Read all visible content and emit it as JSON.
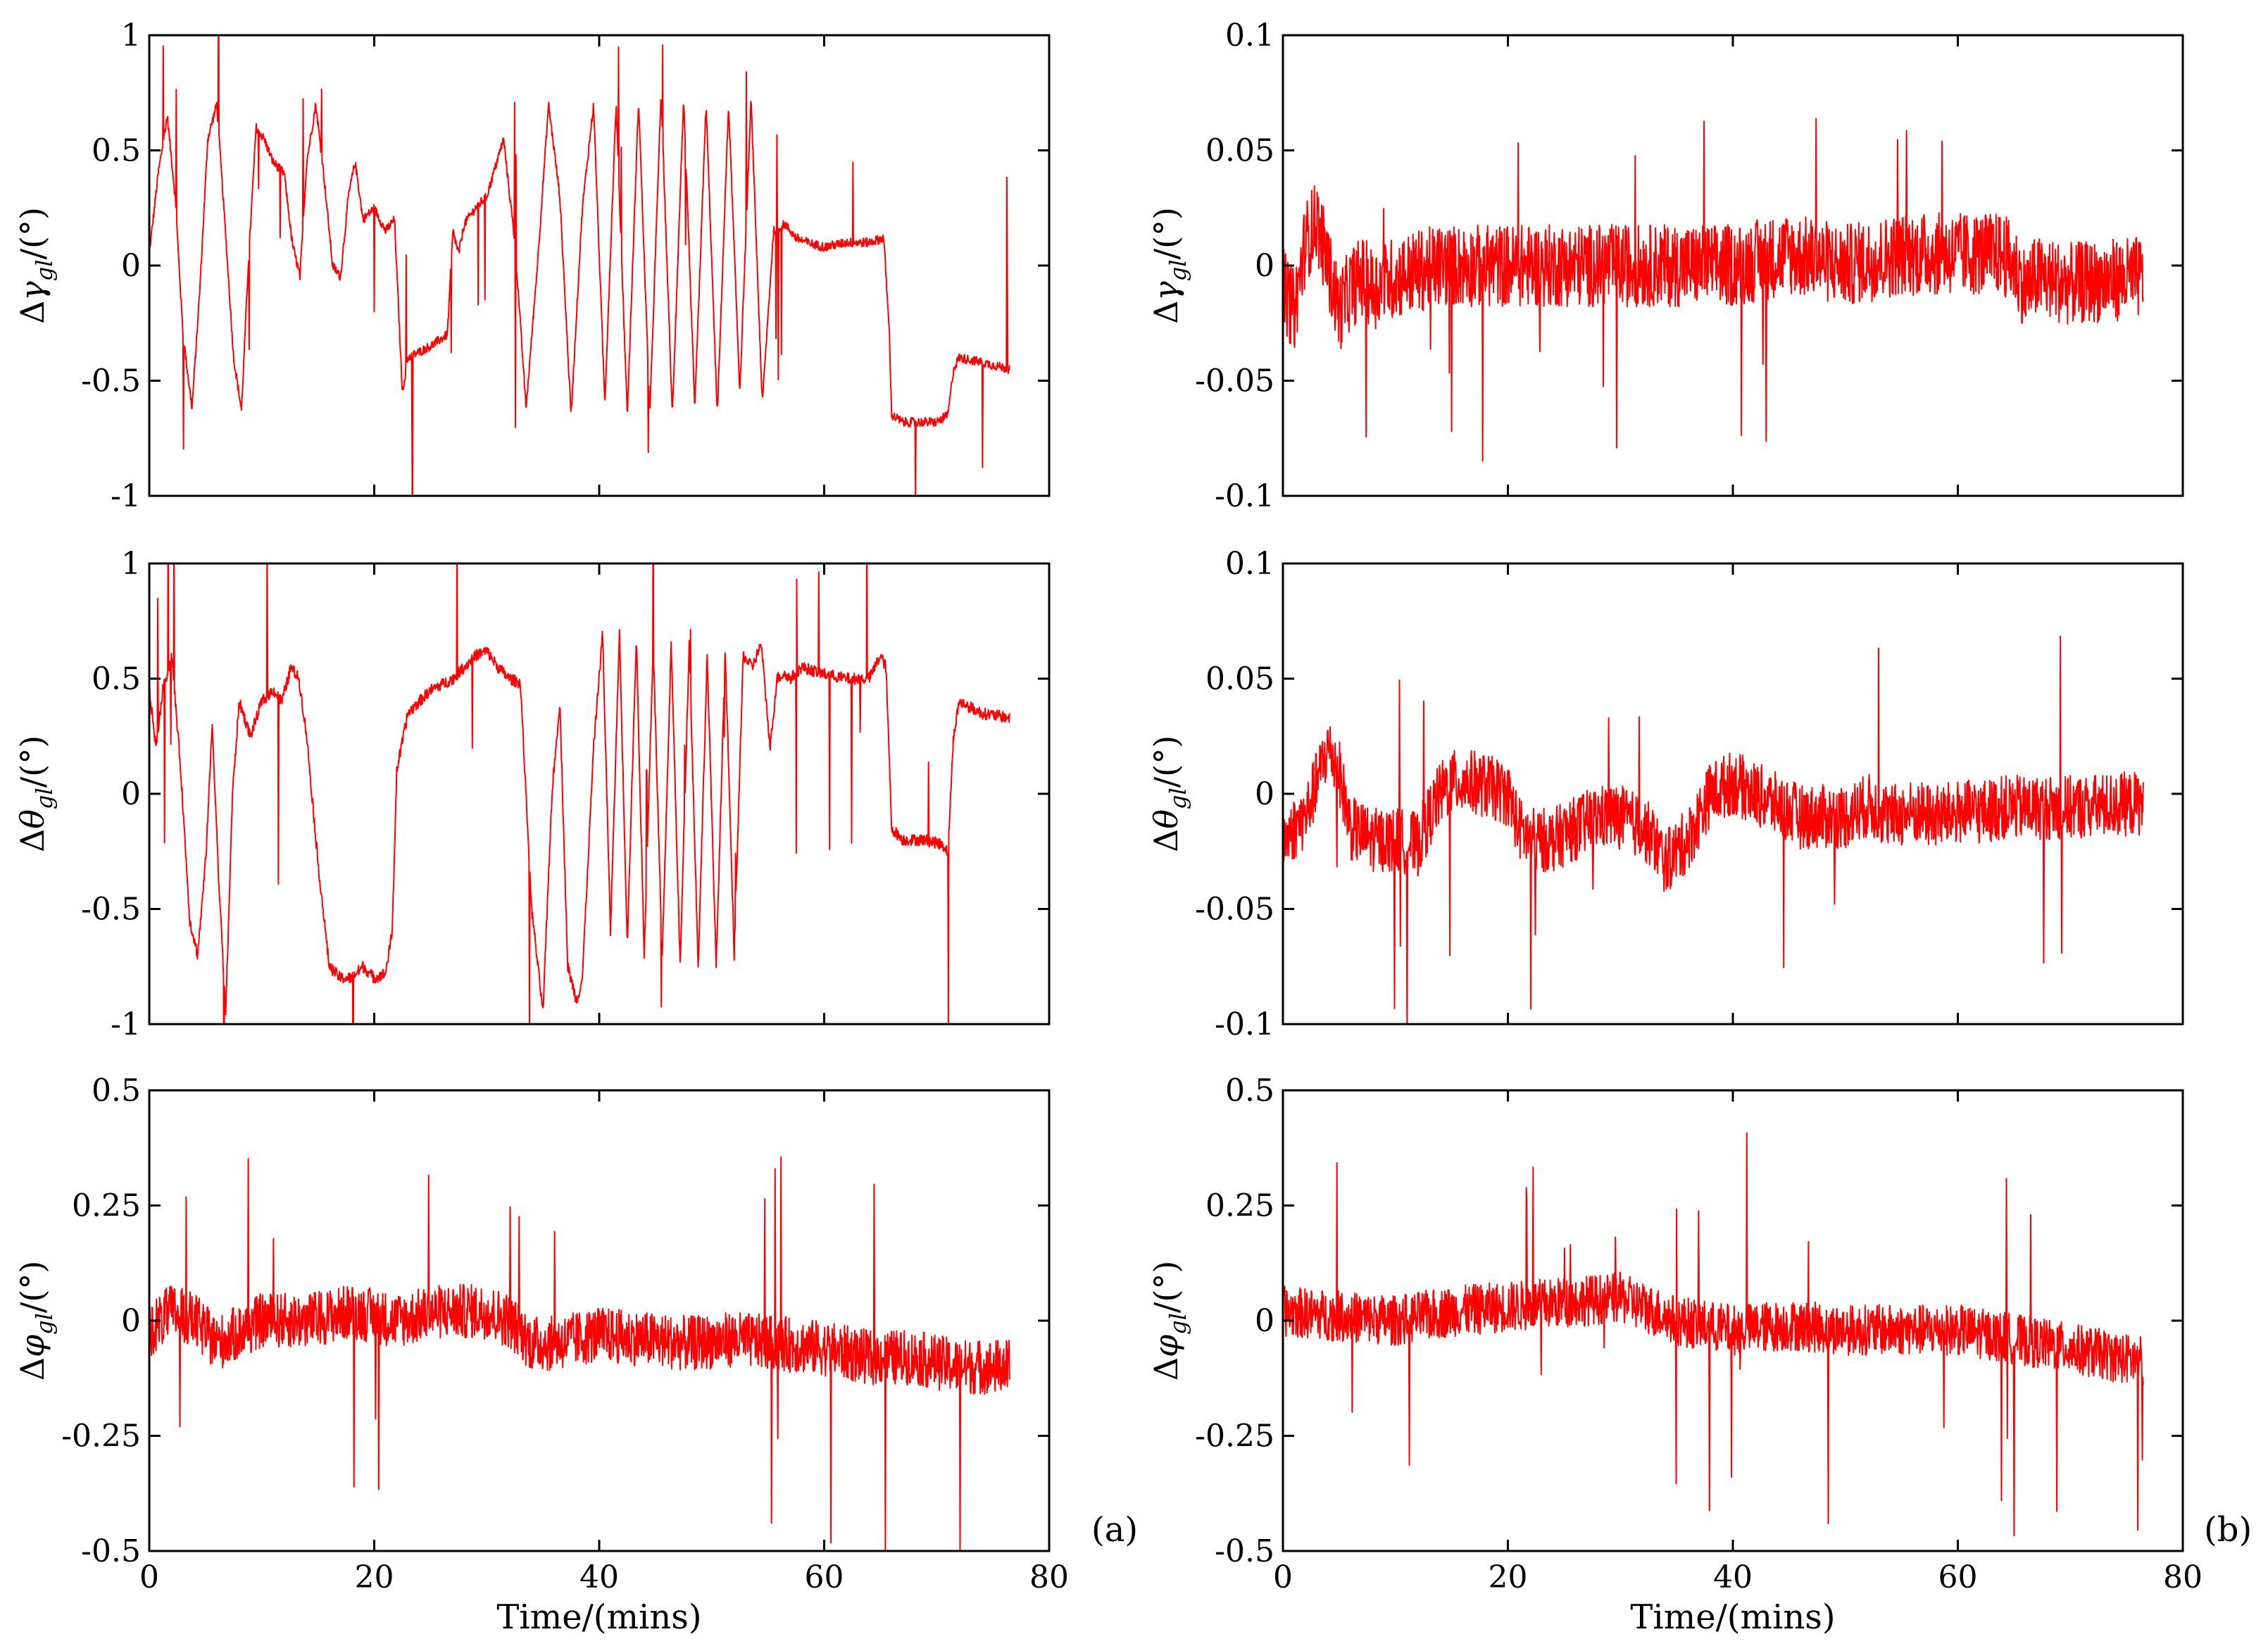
{
  "figure": {
    "panel_a_label": "(a)",
    "panel_b_label": "(b)",
    "trace_color": "#ff0000",
    "unit_suffix": "/(°)"
  },
  "chart_data": [
    {
      "type": "line",
      "panel": "a",
      "row": 1,
      "ylabel": "Δγgl/(°)",
      "ylabel_symbol": "γ",
      "ylabel_subscript": "gl",
      "xlabel": "",
      "xlim": [
        0,
        80
      ],
      "ylim": [
        -1,
        1
      ],
      "xticks": [
        "0",
        "20",
        "40",
        "60",
        "80"
      ],
      "show_xticklabels": false,
      "yticks": [
        "-1",
        "-0.5",
        "0",
        "0.5",
        "1"
      ],
      "series": [
        {
          "name": "Δγgl",
          "color": "#ff0000",
          "noise": 0.02,
          "x": [
            0,
            0.8,
            1.6,
            2.3,
            3.0,
            3.8,
            4.5,
            5.2,
            6.0,
            6.7,
            7.5,
            8.2,
            8.8,
            9.5,
            10.2,
            11,
            12,
            12.7,
            13.4,
            14,
            14.8,
            15.5,
            16.3,
            17,
            17.7,
            18.3,
            19,
            20,
            21,
            21.8,
            22.5,
            23,
            25,
            26.5,
            27,
            27.5,
            28,
            29,
            30,
            31.5,
            32.5,
            33.5,
            34.5,
            35.5,
            36.5,
            37.5,
            38.5,
            39.5,
            40.5,
            41.5,
            42.5,
            43.5,
            44.5,
            45.5,
            46.5,
            47.5,
            48.5,
            49.5,
            50.5,
            51.5,
            52.5,
            53.5,
            54.5,
            55.5,
            56.5,
            57.5,
            58.5,
            60,
            62,
            64,
            65.3,
            65.8,
            66,
            67,
            70,
            71,
            71.5,
            72,
            74,
            76.5
          ],
          "y": [
            0.05,
            0.4,
            0.65,
            0.3,
            -0.3,
            -0.62,
            -0.1,
            0.55,
            0.7,
            0.2,
            -0.4,
            -0.63,
            0,
            0.6,
            0.55,
            0.45,
            0.4,
            0.1,
            -0.05,
            0.45,
            0.7,
            0.4,
            0,
            -0.05,
            0.3,
            0.45,
            0.2,
            0.25,
            0.15,
            0.2,
            -0.55,
            -0.4,
            -0.35,
            -0.3,
            0.15,
            0.05,
            0.18,
            0.25,
            0.3,
            0.55,
            0.1,
            -0.62,
            0,
            0.7,
            0.3,
            -0.65,
            0.25,
            0.7,
            -0.6,
            0.7,
            -0.65,
            0.72,
            -0.65,
            0.75,
            -0.65,
            0.72,
            -0.62,
            0.7,
            -0.65,
            0.7,
            -0.55,
            0.72,
            -0.6,
            0.15,
            0.18,
            0.12,
            0.1,
            0.08,
            0.1,
            0.1,
            0.12,
            -0.3,
            -0.65,
            -0.68,
            -0.68,
            -0.65,
            -0.45,
            -0.4,
            -0.42,
            -0.45
          ]
        }
      ]
    },
    {
      "type": "line",
      "panel": "b",
      "row": 1,
      "ylabel": "Δγgl/(°)",
      "ylabel_symbol": "γ",
      "ylabel_subscript": "gl",
      "xlabel": "",
      "xlim": [
        0,
        80
      ],
      "ylim": [
        -0.1,
        0.1
      ],
      "xticks": [
        "0",
        "20",
        "40",
        "60",
        "80"
      ],
      "show_xticklabels": false,
      "yticks": [
        "-0.1",
        "-0.05",
        "0",
        "0.05",
        "0.1"
      ],
      "series": [
        {
          "name": "Δγgl",
          "color": "#ff0000",
          "noise": 0.018,
          "x": [
            0,
            1,
            2,
            3,
            4,
            5,
            6,
            7,
            8,
            10,
            14,
            20,
            30,
            40,
            45,
            50,
            55,
            60,
            64,
            65,
            66,
            67,
            70,
            76.5
          ],
          "y": [
            -0.01,
            -0.02,
            0.01,
            0.02,
            0.0,
            -0.02,
            -0.01,
            -0.005,
            -0.01,
            -0.005,
            0.0,
            0.0,
            0.0,
            0.0,
            0.005,
            0.0,
            0.005,
            0.005,
            0.005,
            0.0,
            -0.01,
            -0.005,
            -0.008,
            -0.005
          ]
        }
      ]
    },
    {
      "type": "line",
      "panel": "a",
      "row": 2,
      "ylabel": "Δθgl/(°)",
      "ylabel_symbol": "θ",
      "ylabel_subscript": "gl",
      "xlabel": "",
      "xlim": [
        0,
        80
      ],
      "ylim": [
        -1,
        1
      ],
      "xticks": [
        "0",
        "20",
        "40",
        "60",
        "80"
      ],
      "show_xticklabels": false,
      "yticks": [
        "-1",
        "-0.5",
        "0",
        "0.5",
        "1"
      ],
      "series": [
        {
          "name": "Δθgl",
          "color": "#ff0000",
          "noise": 0.025,
          "x": [
            0,
            0.6,
            1.2,
            2.0,
            2.8,
            3.6,
            4.3,
            5.0,
            5.6,
            6.2,
            6.8,
            7.4,
            8.0,
            9.0,
            10,
            11,
            11.8,
            12.6,
            13.3,
            14,
            15,
            16,
            17,
            18,
            19,
            20,
            21,
            21.6,
            22,
            23,
            25,
            27,
            29,
            30,
            31,
            32,
            33,
            34,
            35,
            35.8,
            36.5,
            37.2,
            38,
            38.5,
            39.5,
            40.3,
            41,
            41.8,
            42.5,
            43.3,
            44,
            44.8,
            45.6,
            46.4,
            47.2,
            48,
            48.8,
            49.6,
            50.4,
            51.2,
            52,
            52.8,
            53.6,
            54.4,
            55.2,
            55.8,
            56.4,
            57,
            58,
            60,
            62,
            64,
            65,
            65.5,
            66,
            67,
            69,
            70.5,
            71,
            71.5,
            72,
            74,
            76.5
          ],
          "y": [
            0.45,
            0.2,
            0.45,
            0.6,
            0.1,
            -0.55,
            -0.7,
            -0.3,
            0.3,
            -0.4,
            -0.95,
            0,
            0.4,
            0.25,
            0.4,
            0.45,
            0.4,
            0.55,
            0.5,
            0.25,
            -0.3,
            -0.75,
            -0.8,
            -0.8,
            -0.75,
            -0.8,
            -0.78,
            -0.6,
            0.1,
            0.35,
            0.45,
            0.5,
            0.6,
            0.62,
            0.55,
            0.5,
            0.48,
            -0.5,
            -0.95,
            0,
            0.4,
            -0.75,
            -0.9,
            -0.8,
            0.2,
            0.7,
            -0.6,
            0.7,
            -0.65,
            0.68,
            -0.7,
            0.65,
            -0.72,
            0.65,
            -0.75,
            0.65,
            -0.75,
            0.6,
            -0.75,
            0.62,
            -0.7,
            0.6,
            0.55,
            0.65,
            0.2,
            0.5,
            0.52,
            0.5,
            0.55,
            0.52,
            0.5,
            0.5,
            0.6,
            0.55,
            -0.15,
            -0.2,
            -0.2,
            -0.22,
            -0.25,
            0.25,
            0.4,
            0.35,
            0.33
          ]
        }
      ]
    },
    {
      "type": "line",
      "panel": "b",
      "row": 2,
      "ylabel": "Δθgl/(°)",
      "ylabel_symbol": "θ",
      "ylabel_subscript": "gl",
      "xlabel": "",
      "xlim": [
        0,
        80
      ],
      "ylim": [
        -0.1,
        0.1
      ],
      "xticks": [
        "0",
        "20",
        "40",
        "60",
        "80"
      ],
      "show_xticklabels": false,
      "yticks": [
        "-0.1",
        "-0.05",
        "0",
        "0.05",
        "0.1"
      ],
      "series": [
        {
          "name": "Δθgl",
          "color": "#ff0000",
          "noise": 0.014,
          "x": [
            0,
            2,
            4,
            5,
            6,
            8,
            10,
            12,
            13,
            14,
            15,
            17,
            20,
            21,
            22,
            24,
            26,
            28,
            30,
            32,
            33,
            34,
            36,
            38,
            40,
            42,
            44,
            46,
            48,
            50,
            52,
            54,
            56,
            58,
            60,
            62,
            64,
            66,
            70,
            76.5
          ],
          "y": [
            -0.02,
            -0.01,
            0.02,
            0.01,
            -0.015,
            -0.02,
            -0.02,
            -0.022,
            -0.01,
            0.0,
            0.005,
            0.005,
            0.0,
            -0.015,
            -0.02,
            -0.02,
            -0.015,
            -0.01,
            -0.01,
            -0.015,
            -0.02,
            -0.03,
            -0.02,
            0.0,
            0.005,
            0.0,
            -0.005,
            -0.01,
            -0.01,
            -0.01,
            -0.005,
            -0.01,
            -0.008,
            -0.01,
            -0.008,
            -0.008,
            -0.006,
            -0.006,
            -0.006,
            -0.004
          ]
        }
      ]
    },
    {
      "type": "line",
      "panel": "a",
      "row": 3,
      "ylabel": "Δφgl/(°)",
      "ylabel_symbol": "φ",
      "ylabel_subscript": "gl",
      "xlabel": "Time/(mins)",
      "xlim": [
        0,
        80
      ],
      "ylim": [
        -0.5,
        0.5
      ],
      "xticks": [
        "0",
        "20",
        "40",
        "60",
        "80"
      ],
      "show_xticklabels": true,
      "yticks": [
        "-0.5",
        "-0.25",
        "0",
        "0.25",
        "0.5"
      ],
      "series": [
        {
          "name": "Δφgl",
          "color": "#ff0000",
          "noise": 0.06,
          "x": [
            0,
            2,
            4,
            6,
            10,
            14,
            18,
            22,
            26,
            30,
            32,
            34,
            36,
            40,
            44,
            48,
            52,
            56,
            60,
            64,
            68,
            72,
            76.5
          ],
          "y": [
            -0.02,
            0.02,
            0.0,
            -0.05,
            0.0,
            0.0,
            0.02,
            0.0,
            0.02,
            0.02,
            0.0,
            -0.05,
            -0.05,
            -0.03,
            -0.04,
            -0.05,
            -0.04,
            -0.05,
            -0.06,
            -0.08,
            -0.08,
            -0.1,
            -0.1
          ]
        }
      ]
    },
    {
      "type": "line",
      "panel": "b",
      "row": 3,
      "ylabel": "Δφgl/(°)",
      "ylabel_symbol": "φ",
      "ylabel_subscript": "gl",
      "xlabel": "Time/(mins)",
      "xlim": [
        0,
        80
      ],
      "ylim": [
        -0.5,
        0.5
      ],
      "xticks": [
        "0",
        "20",
        "40",
        "60",
        "80"
      ],
      "show_xticklabels": true,
      "yticks": [
        "-0.5",
        "-0.25",
        "0",
        "0.25",
        "0.5"
      ],
      "series": [
        {
          "name": "Δφgl",
          "color": "#ff0000",
          "noise": 0.055,
          "x": [
            0,
            5,
            10,
            15,
            20,
            25,
            30,
            35,
            40,
            45,
            50,
            55,
            60,
            65,
            70,
            76.5
          ],
          "y": [
            0.02,
            0.01,
            0.0,
            0.02,
            0.03,
            0.04,
            0.05,
            0.0,
            -0.02,
            -0.01,
            -0.02,
            -0.02,
            -0.02,
            -0.04,
            -0.06,
            -0.09
          ]
        }
      ]
    }
  ]
}
